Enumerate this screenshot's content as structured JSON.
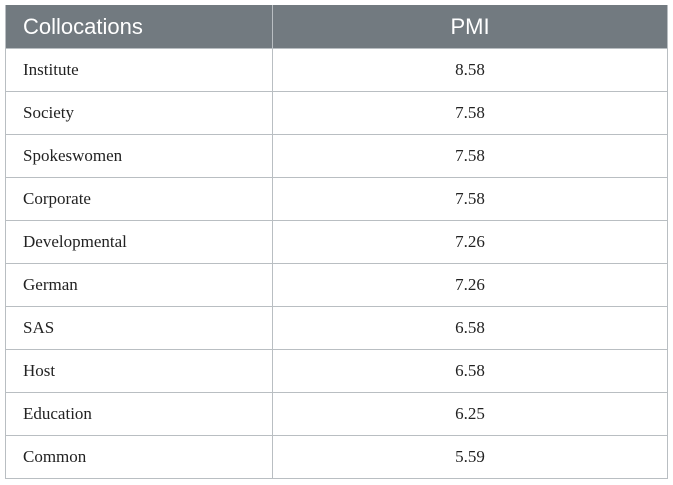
{
  "table": {
    "headers": [
      "Collocations",
      "PMI"
    ],
    "rows": [
      {
        "collocation": "Institute",
        "pmi": "8.58"
      },
      {
        "collocation": "Society",
        "pmi": "7.58"
      },
      {
        "collocation": "Spokeswomen",
        "pmi": "7.58"
      },
      {
        "collocation": "Corporate",
        "pmi": "7.58"
      },
      {
        "collocation": "Developmental",
        "pmi": "7.26"
      },
      {
        "collocation": "German",
        "pmi": "7.26"
      },
      {
        "collocation": "SAS",
        "pmi": "6.58"
      },
      {
        "collocation": "Host",
        "pmi": "6.58"
      },
      {
        "collocation": "Education",
        "pmi": "6.25"
      },
      {
        "collocation": "Common",
        "pmi": "5.59"
      }
    ]
  },
  "colors": {
    "header_background": "#727a80",
    "header_text": "#ffffff",
    "grid_lines": "#b9bec2"
  }
}
